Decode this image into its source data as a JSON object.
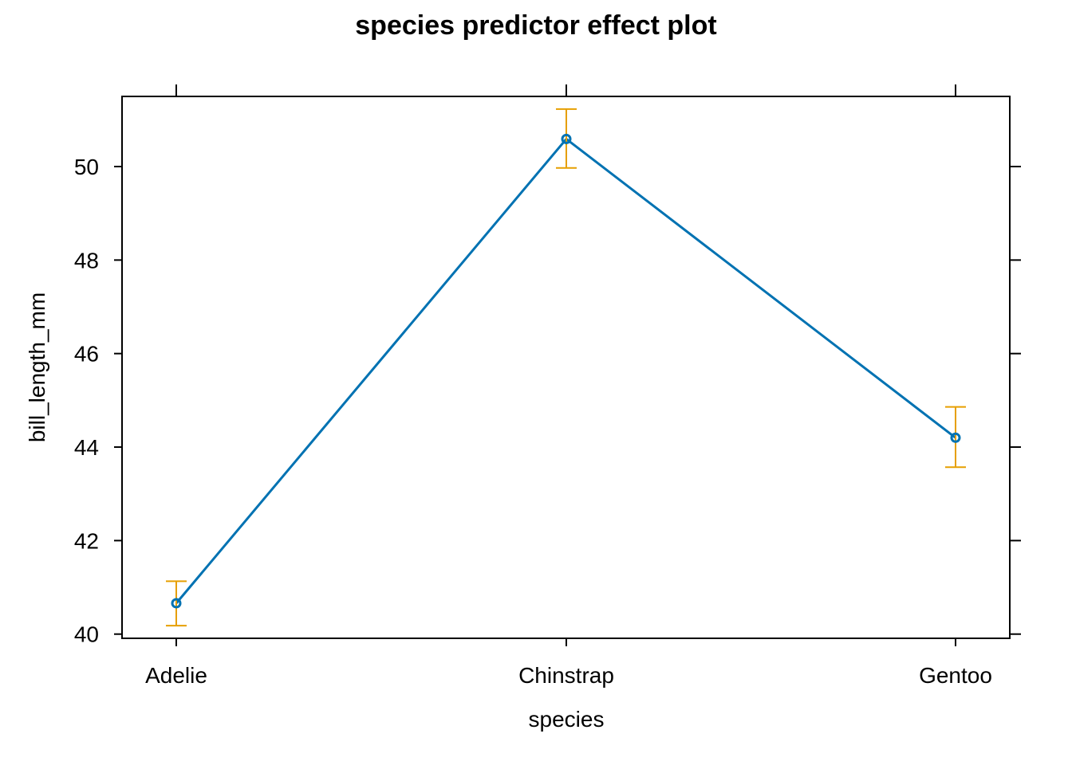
{
  "chart_data": {
    "type": "line",
    "title": "species predictor effect plot",
    "xlabel": "species",
    "ylabel": "bill_length_mm",
    "categories": [
      "Adelie",
      "Chinstrap",
      "Gentoo"
    ],
    "values": [
      40.66,
      50.59,
      44.2
    ],
    "lower": [
      40.18,
      49.97,
      43.57
    ],
    "upper": [
      41.13,
      51.23,
      44.86
    ],
    "yticks": [
      40,
      42,
      44,
      46,
      48,
      50
    ],
    "ylim": [
      39.91,
      51.5
    ],
    "grid": false,
    "colors": {
      "line": "#0072B2",
      "errorbar": "#E69F00",
      "axis": "#000000"
    }
  }
}
